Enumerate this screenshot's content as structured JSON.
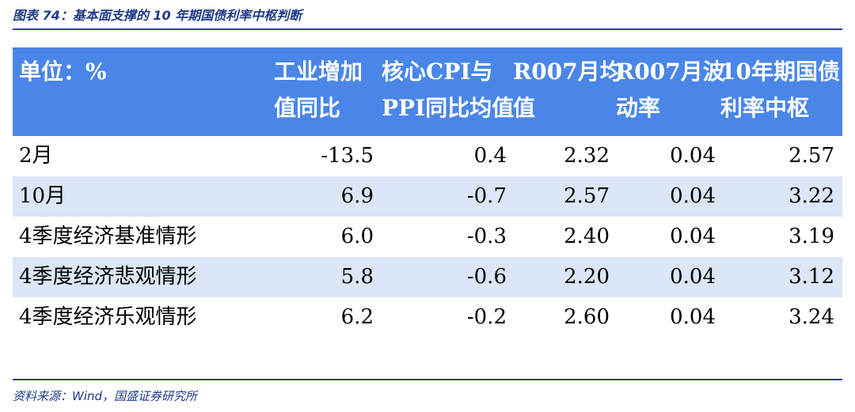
{
  "caption": "图表 74：基本面支撑的 10 年期国债利率中枢判断",
  "table": {
    "headers": [
      [
        "单位：%",
        ""
      ],
      [
        "工业增加",
        "值同比"
      ],
      [
        "核心CPI与",
        "PPI同比均值"
      ],
      [
        "R007月均",
        "值"
      ],
      [
        "R007月波",
        "动率"
      ],
      [
        "10年期国债",
        "利率中枢"
      ]
    ],
    "rows": [
      [
        "2月",
        "-13.5",
        "0.4",
        "2.32",
        "0.04",
        "2.57"
      ],
      [
        "10月",
        "6.9",
        "-0.7",
        "2.57",
        "0.04",
        "3.22"
      ],
      [
        "4季度经济基准情形",
        "6.0",
        "-0.3",
        "2.40",
        "0.04",
        "3.19"
      ],
      [
        "4季度经济悲观情形",
        "5.8",
        "-0.6",
        "2.20",
        "0.04",
        "3.12"
      ],
      [
        "4季度经济乐观情形",
        "6.2",
        "-0.2",
        "2.60",
        "0.04",
        "3.24"
      ]
    ]
  },
  "source": "资料来源：Wind，国盛证券研究所",
  "colors": {
    "header_bg": "#4a86e8",
    "alt_row_bg": "#dbe6f6",
    "rule": "#2b3f8f",
    "caption_text": "#1f3a8a"
  }
}
